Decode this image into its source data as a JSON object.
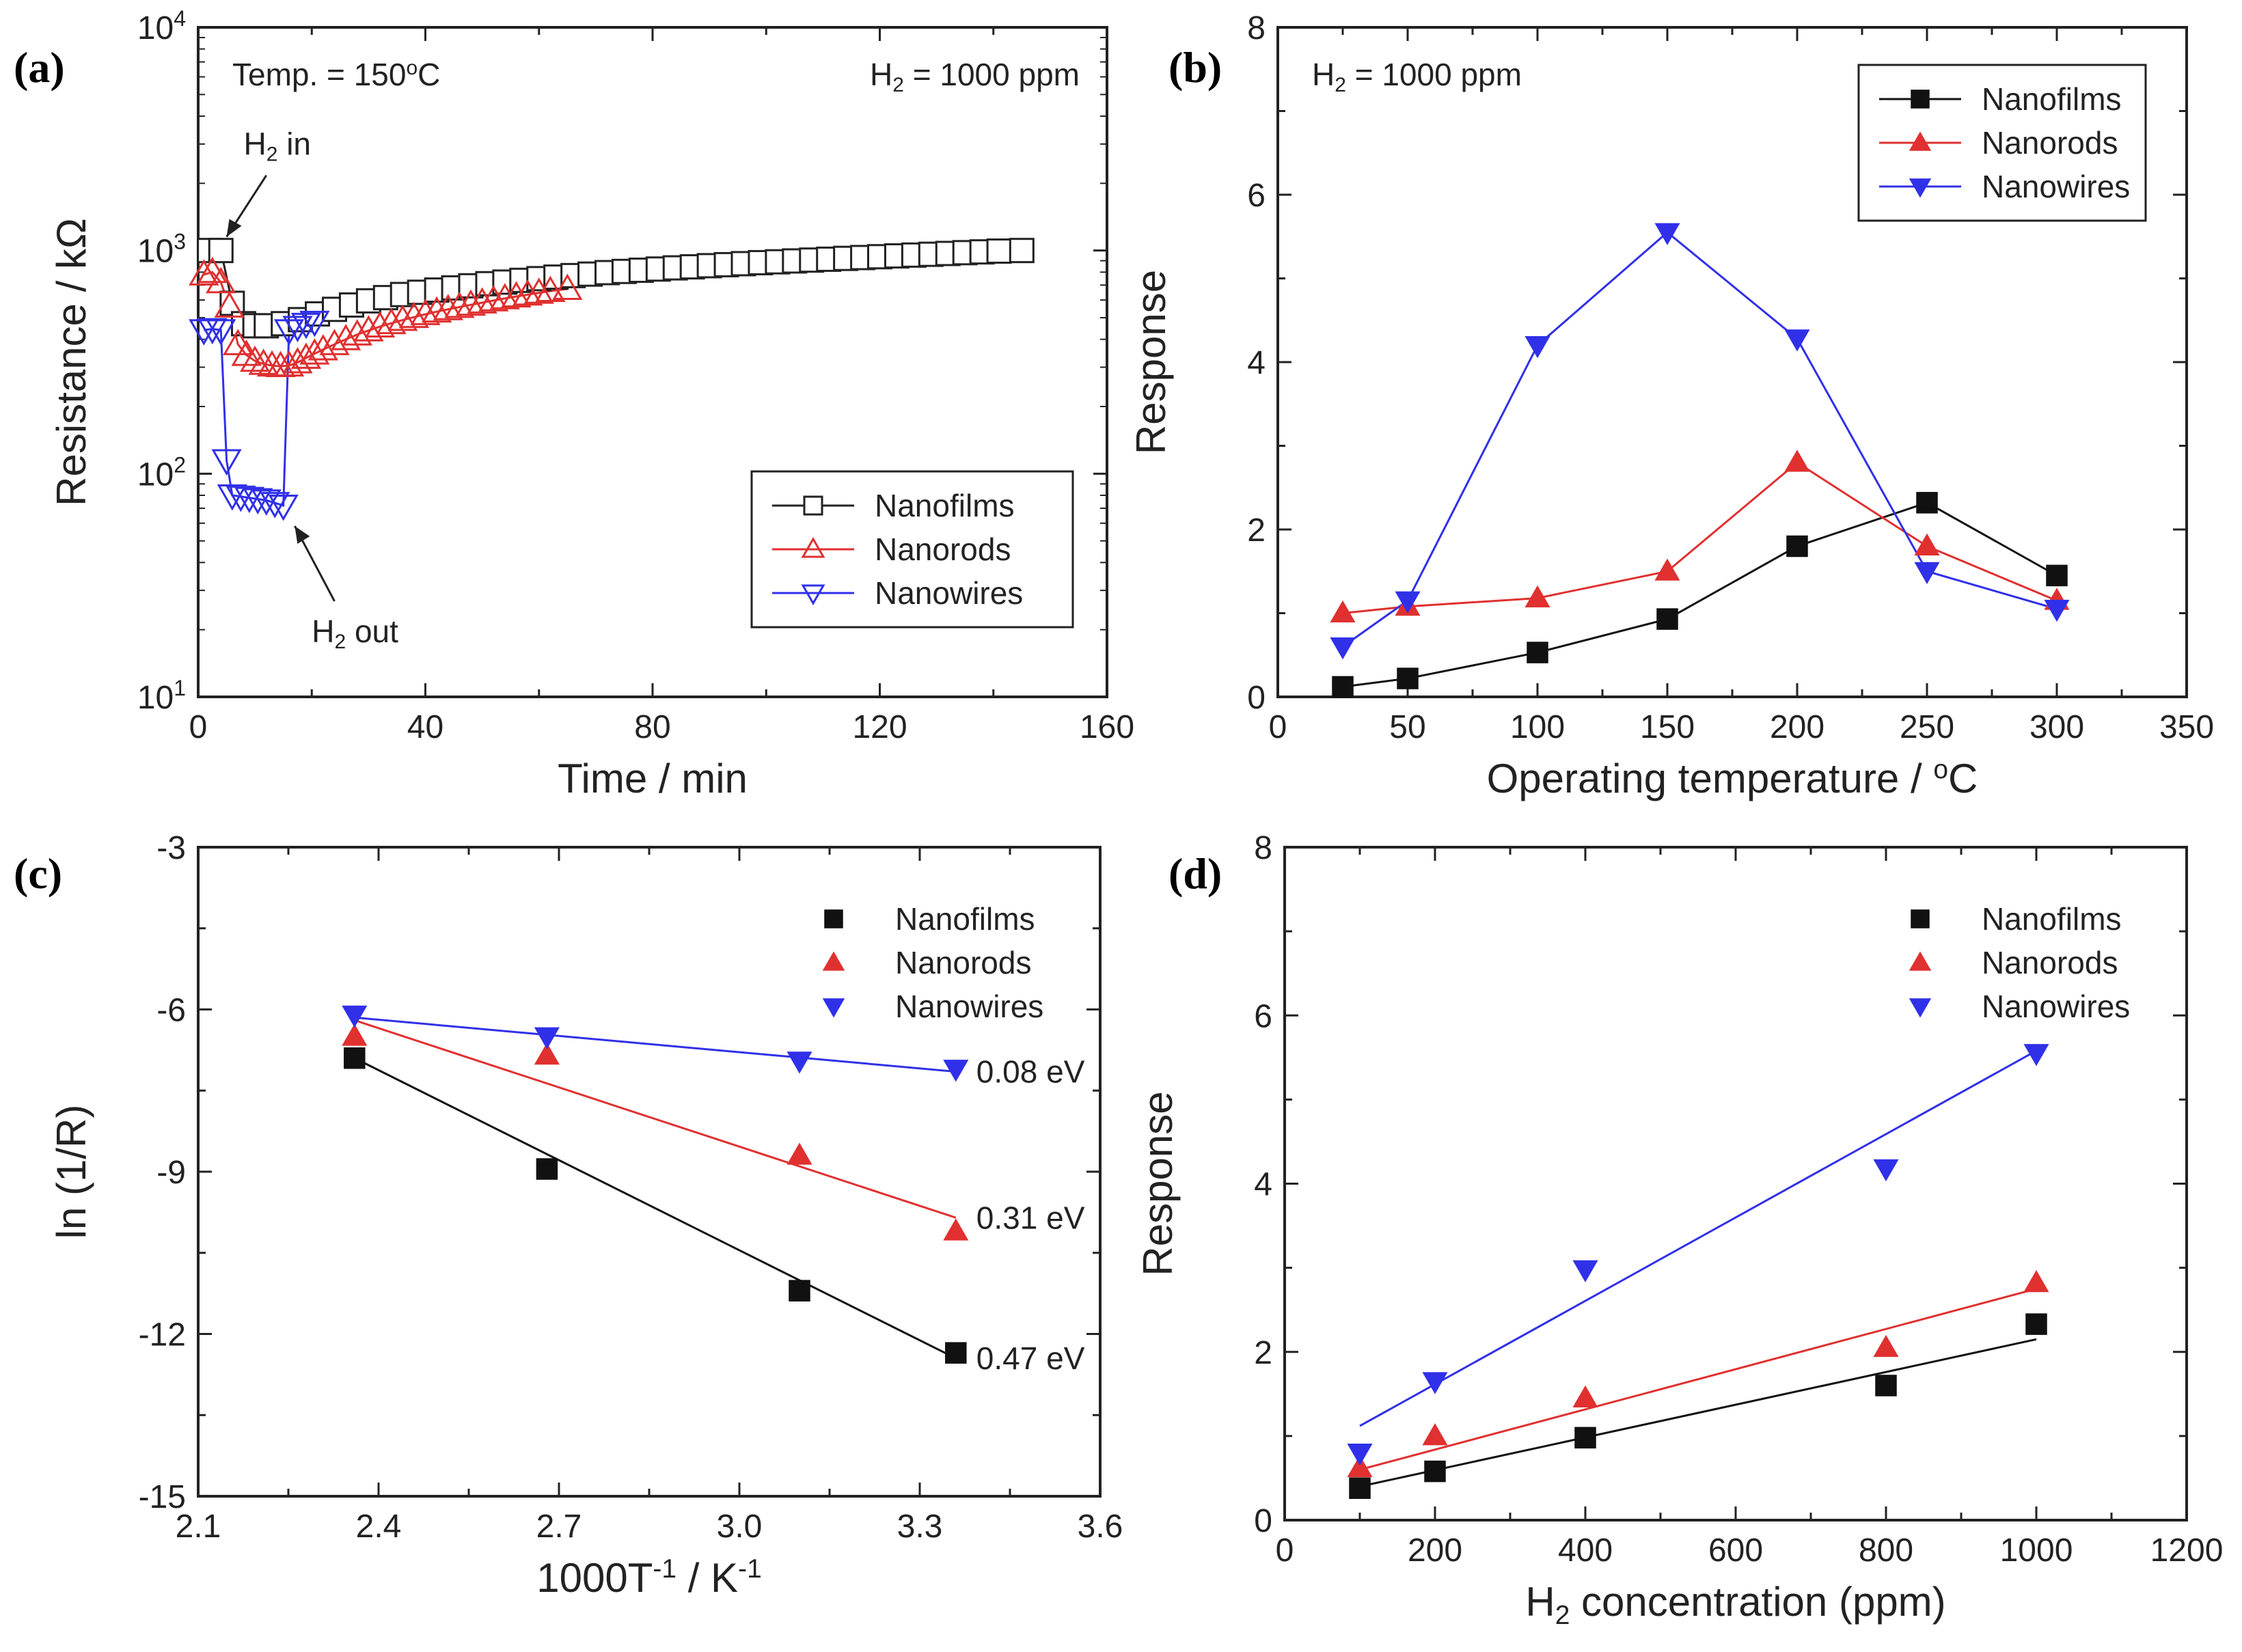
{
  "chart_data": [
    {
      "id": "a",
      "panel_label": "(a)",
      "type": "scatter",
      "title": "",
      "xlabel": "Time / min",
      "ylabel": "Resistance / kΩ",
      "xlim": [
        0,
        160
      ],
      "ylim": [
        10,
        10000
      ],
      "yscale": "log",
      "xticks": [
        0,
        40,
        80,
        120,
        160
      ],
      "xtick_labels": [
        "0",
        "40",
        "80",
        "120",
        "160"
      ],
      "yticks": [
        10,
        100,
        1000,
        10000
      ],
      "ytick_labels": [
        {
          "base": "10",
          "exp": "1"
        },
        {
          "base": "10",
          "exp": "2"
        },
        {
          "base": "10",
          "exp": "3"
        },
        {
          "base": "10",
          "exp": "4"
        }
      ],
      "legend_position": "bottom-right",
      "annotations": {
        "temp": {
          "pre": "Temp. = 150",
          "sup": "o",
          "post": "C"
        },
        "conc": {
          "pre": "H",
          "sub": "2",
          "post": " = 1000 ppm"
        },
        "h2_in": {
          "pre": "H",
          "sub": "2",
          "post": " in"
        },
        "h2_out": {
          "pre": "H",
          "sub": "2",
          "post": " out"
        }
      },
      "series": [
        {
          "name": "Nanofilms",
          "color": "#222222",
          "marker": "square-open",
          "x": [
            2,
            4,
            6,
            8,
            10,
            12,
            15,
            18,
            21,
            24,
            27,
            30,
            33,
            36,
            39,
            42,
            45,
            48,
            51,
            54,
            57,
            60,
            63,
            66,
            69,
            72,
            75,
            78,
            81,
            84,
            87,
            90,
            93,
            96,
            99,
            102,
            105,
            108,
            111,
            114,
            117,
            120,
            123,
            126,
            129,
            132,
            135,
            138,
            141,
            145
          ],
          "y": [
            1000,
            1000,
            580,
            470,
            460,
            460,
            470,
            490,
            520,
            545,
            570,
            595,
            615,
            635,
            650,
            665,
            680,
            695,
            710,
            722,
            735,
            748,
            760,
            772,
            784,
            796,
            806,
            816,
            826,
            836,
            845,
            855,
            864,
            873,
            882,
            890,
            898,
            906,
            914,
            922,
            930,
            938,
            946,
            954,
            962,
            970,
            978,
            986,
            994,
            1000
          ]
        },
        {
          "name": "Nanorods",
          "color": "#e03030",
          "marker": "triangle-up-open",
          "x": [
            1,
            2.5,
            4,
            5.5,
            7,
            8.5,
            10,
            11.5,
            13,
            14.5,
            16,
            17.5,
            19,
            20.5,
            22,
            24,
            26,
            28,
            30,
            32,
            34,
            36,
            38,
            40,
            42,
            44,
            46,
            48,
            50,
            52,
            54,
            56,
            58,
            60,
            62,
            65
          ],
          "y": [
            780,
            800,
            720,
            560,
            380,
            340,
            320,
            310,
            305,
            303,
            305,
            315,
            330,
            345,
            360,
            380,
            400,
            420,
            438,
            456,
            472,
            488,
            503,
            518,
            532,
            545,
            558,
            571,
            584,
            597,
            610,
            622,
            634,
            646,
            658,
            672
          ]
        },
        {
          "name": "Nanowires",
          "color": "#3030e8",
          "marker": "triangle-down-open",
          "x": [
            1,
            2.5,
            4,
            5,
            6,
            7.5,
            9,
            10.5,
            12,
            13.5,
            15,
            16,
            17.5,
            19,
            20.5
          ],
          "y": [
            440,
            445,
            440,
            115,
            80,
            79,
            78,
            77,
            76,
            74,
            72,
            440,
            455,
            470,
            480
          ]
        }
      ]
    },
    {
      "id": "b",
      "panel_label": "(b)",
      "type": "line",
      "title": "",
      "xlabel": {
        "pre": "Operating temperature / ",
        "sup": "o",
        "post": "C"
      },
      "ylabel": "Response",
      "xlim": [
        0,
        350
      ],
      "ylim": [
        0,
        8
      ],
      "xticks": [
        0,
        50,
        100,
        150,
        200,
        250,
        300,
        350
      ],
      "xtick_labels": [
        "0",
        "50",
        "100",
        "150",
        "200",
        "250",
        "300",
        "350"
      ],
      "yticks": [
        0,
        2,
        4,
        6,
        8
      ],
      "ytick_labels": [
        "0",
        "2",
        "4",
        "6",
        "8"
      ],
      "legend_position": "top-right",
      "annotations": {
        "conc": {
          "pre": "H",
          "sub": "2",
          "post": " = 1000 ppm"
        }
      },
      "series": [
        {
          "name": "Nanofilms",
          "color": "#111111",
          "marker": "square",
          "x": [
            25,
            50,
            100,
            150,
            200,
            250,
            300
          ],
          "y": [
            0.12,
            0.22,
            0.53,
            0.93,
            1.8,
            2.32,
            1.45
          ]
        },
        {
          "name": "Nanorods",
          "color": "#e03030",
          "marker": "triangle-up",
          "x": [
            25,
            50,
            100,
            150,
            200,
            250,
            300
          ],
          "y": [
            1.0,
            1.08,
            1.18,
            1.5,
            2.8,
            1.8,
            1.15
          ]
        },
        {
          "name": "Nanowires",
          "color": "#3030e8",
          "marker": "triangle-down",
          "x": [
            25,
            50,
            100,
            150,
            200,
            250,
            300
          ],
          "y": [
            0.6,
            1.15,
            4.2,
            5.55,
            4.28,
            1.5,
            1.05
          ]
        }
      ]
    },
    {
      "id": "c",
      "panel_label": "(c)",
      "type": "scatter",
      "title": "",
      "xlabel": {
        "pre": "1000T",
        "sup1": "-1",
        "mid": " / K",
        "sup2": "-1"
      },
      "ylabel": "ln (1/R)",
      "xlim": [
        2.1,
        3.6
      ],
      "ylim": [
        -15,
        -3
      ],
      "xticks": [
        2.1,
        2.4,
        2.7,
        3.0,
        3.3,
        3.6
      ],
      "xtick_labels": [
        "2.1",
        "2.4",
        "2.7",
        "3.0",
        "3.3",
        "3.6"
      ],
      "yticks": [
        -15,
        -12,
        -9,
        -6,
        -3
      ],
      "ytick_labels": [
        "-15",
        "-12",
        "-9",
        "-6",
        "-3"
      ],
      "legend_position": "top-right",
      "series": [
        {
          "name": "Nanofilms",
          "color": "#111111",
          "marker": "square",
          "x": [
            2.36,
            2.68,
            3.1,
            3.36
          ],
          "y": [
            -6.9,
            -8.95,
            -11.2,
            -12.35
          ],
          "fit": [
            [
              2.36,
              -6.9
            ],
            [
              3.36,
              -12.45
            ]
          ],
          "fit_label": "0.47 eV"
        },
        {
          "name": "Nanorods",
          "color": "#e03030",
          "marker": "triangle-up",
          "x": [
            2.36,
            2.68,
            3.1,
            3.36
          ],
          "y": [
            -6.5,
            -6.85,
            -8.7,
            -10.1
          ],
          "fit": [
            [
              2.36,
              -6.2
            ],
            [
              3.36,
              -9.85
            ]
          ],
          "fit_label": "0.31 eV"
        },
        {
          "name": "Nanowires",
          "color": "#3030e8",
          "marker": "triangle-down",
          "x": [
            2.36,
            2.68,
            3.1,
            3.36
          ],
          "y": [
            -6.1,
            -6.5,
            -6.95,
            -7.1
          ],
          "fit": [
            [
              2.36,
              -6.15
            ],
            [
              3.36,
              -7.15
            ]
          ],
          "fit_label": "0.08 eV"
        }
      ]
    },
    {
      "id": "d",
      "panel_label": "(d)",
      "type": "scatter",
      "title": "",
      "xlabel": {
        "pre": "H",
        "sub": "2",
        "post": " concentration (ppm)"
      },
      "ylabel": "Response",
      "xlim": [
        0,
        1200
      ],
      "ylim": [
        0,
        8
      ],
      "xticks": [
        0,
        200,
        400,
        600,
        800,
        1000,
        1200
      ],
      "xtick_labels": [
        "0",
        "200",
        "400",
        "600",
        "800",
        "1000",
        "1200"
      ],
      "yticks": [
        0,
        2,
        4,
        6,
        8
      ],
      "ytick_labels": [
        "0",
        "2",
        "4",
        "6",
        "8"
      ],
      "legend_position": "top-right",
      "series": [
        {
          "name": "Nanofilms",
          "color": "#111111",
          "marker": "square",
          "x": [
            100,
            200,
            400,
            800,
            1000
          ],
          "y": [
            0.38,
            0.58,
            0.98,
            1.6,
            2.33
          ],
          "fit": [
            [
              100,
              0.4
            ],
            [
              1000,
              2.15
            ]
          ]
        },
        {
          "name": "Nanorods",
          "color": "#e03030",
          "marker": "triangle-up",
          "x": [
            100,
            200,
            400,
            800,
            1000
          ],
          "y": [
            0.62,
            1.0,
            1.45,
            2.05,
            2.82
          ],
          "fit": [
            [
              100,
              0.6
            ],
            [
              1000,
              2.75
            ]
          ]
        },
        {
          "name": "Nanowires",
          "color": "#3030e8",
          "marker": "triangle-down",
          "x": [
            100,
            200,
            400,
            800,
            1000
          ],
          "y": [
            0.8,
            1.65,
            2.98,
            4.18,
            5.55
          ],
          "fit": [
            [
              100,
              1.12
            ],
            [
              1000,
              5.58
            ]
          ]
        }
      ]
    }
  ]
}
